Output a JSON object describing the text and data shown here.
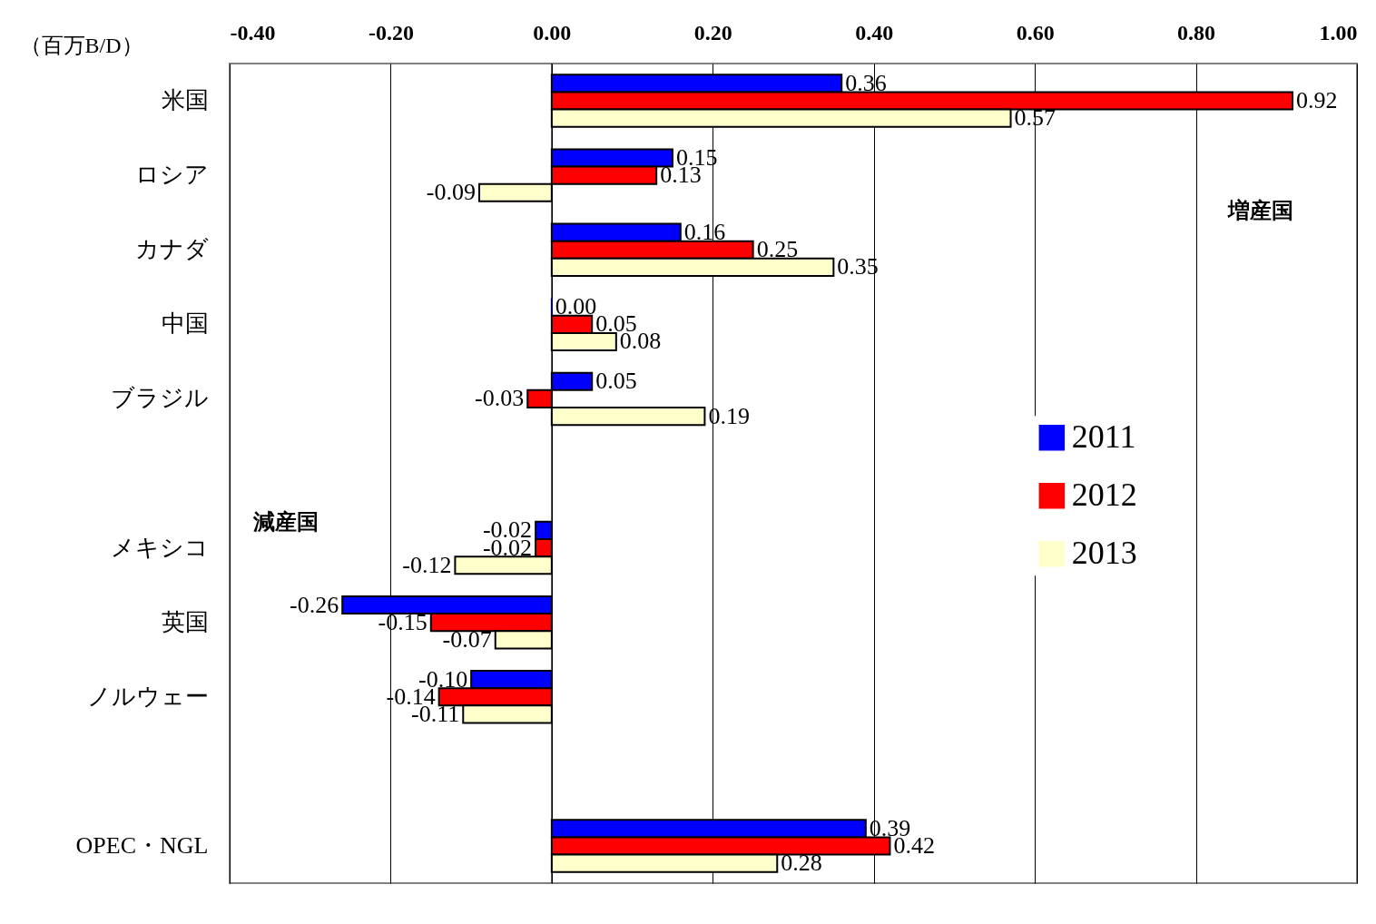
{
  "chart_data": {
    "type": "bar",
    "orientation": "horizontal",
    "xlabel": "（百万B/D）",
    "categories": [
      "米国",
      "ロシア",
      "カナダ",
      "中国",
      "ブラジル",
      null,
      "メキシコ",
      "英国",
      "ノルウェー",
      null,
      "OPEC・NGL"
    ],
    "series": [
      {
        "name": "2011",
        "color": "#0000ff",
        "values": [
          0.36,
          0.15,
          0.16,
          0.0,
          0.05,
          null,
          -0.02,
          -0.26,
          -0.1,
          null,
          0.39
        ],
        "value_labels": [
          "0.36",
          "0.15",
          "0.16",
          "0.00",
          "0.05",
          null,
          "-0.02",
          "-0.26",
          "-0.10",
          null,
          "0.39"
        ]
      },
      {
        "name": "2012",
        "color": "#ff0000",
        "values": [
          0.92,
          0.13,
          0.25,
          0.05,
          -0.03,
          null,
          -0.02,
          -0.15,
          -0.14,
          null,
          0.42
        ],
        "value_labels": [
          "0.92",
          "0.13",
          "0.25",
          "0.05",
          "-0.03",
          null,
          "-0.02",
          "-0.15",
          "-0.14",
          null,
          "0.42"
        ]
      },
      {
        "name": "2013",
        "color": "#ffffcc",
        "values": [
          0.57,
          -0.09,
          0.35,
          0.08,
          0.19,
          null,
          -0.12,
          -0.07,
          -0.11,
          null,
          0.28
        ],
        "value_labels": [
          "0.57",
          "-0.09",
          "0.35",
          "0.08",
          "0.19",
          null,
          "-0.12",
          "-0.07",
          "-0.11",
          null,
          "0.28"
        ]
      }
    ],
    "xlim": [
      -0.4,
      1.0
    ],
    "xticks": [
      {
        "value": -0.4,
        "label": "-0.40"
      },
      {
        "value": -0.2,
        "label": "-0.20"
      },
      {
        "value": 0,
        "label": "0.00"
      },
      {
        "value": 0.2,
        "label": "0.20"
      },
      {
        "value": 0.4,
        "label": "0.40"
      },
      {
        "value": 0.6,
        "label": "0.60"
      },
      {
        "value": 0.8,
        "label": "0.80"
      },
      {
        "value": 1.0,
        "label": "1.00"
      }
    ],
    "grid": "x",
    "legend": "right",
    "annotations": [
      "増産国",
      "減産国"
    ]
  }
}
